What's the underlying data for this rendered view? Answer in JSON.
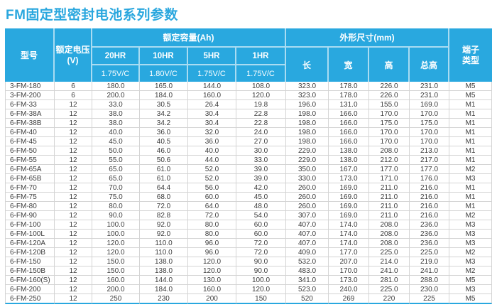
{
  "title": "FM固定型密封电池系列参数",
  "colors": {
    "accent": "#29a8df",
    "header_bg": "#29a8df",
    "header_text": "#ffffff",
    "title_text": "#2aa7de",
    "body_text": "#3d3d3d",
    "grid_line": "#d4d4d4"
  },
  "table": {
    "header": {
      "model": "型号",
      "voltage": "额定电压\n(V)",
      "capacity_group": "额定容量(Ah)",
      "capacity_cols": [
        {
          "hr": "20HR",
          "vc": "1.75V/C"
        },
        {
          "hr": "10HR",
          "vc": "1.80V/C"
        },
        {
          "hr": "5HR",
          "vc": "1.75V/C"
        },
        {
          "hr": "1HR",
          "vc": "1.75V/C"
        }
      ],
      "dimensions_group": "外形尺寸(mm)",
      "dimension_cols": [
        "长",
        "宽",
        "高",
        "总高"
      ],
      "terminal": "端子\n类型"
    },
    "rows": [
      [
        "3-FM-180",
        "6",
        "180.0",
        "165.0",
        "144.0",
        "108.0",
        "323.0",
        "178.0",
        "226.0",
        "231.0",
        "M5"
      ],
      [
        "3-FM-200",
        "6",
        "200.0",
        "184.0",
        "160.0",
        "120.0",
        "323.0",
        "178.0",
        "226.0",
        "231.0",
        "M5"
      ],
      [
        "6-FM-33",
        "12",
        "33.0",
        "30.5",
        "26.4",
        "19.8",
        "196.0",
        "131.0",
        "155.0",
        "169.0",
        "M1"
      ],
      [
        "6-FM-38A",
        "12",
        "38.0",
        "34.2",
        "30.4",
        "22.8",
        "198.0",
        "166.0",
        "170.0",
        "170.0",
        "M1"
      ],
      [
        "6-FM-38B",
        "12",
        "38.0",
        "34.2",
        "30.4",
        "22.8",
        "198.0",
        "166.0",
        "175.0",
        "175.0",
        "M1"
      ],
      [
        "6-FM-40",
        "12",
        "40.0",
        "36.0",
        "32.0",
        "24.0",
        "198.0",
        "166.0",
        "170.0",
        "170.0",
        "M1"
      ],
      [
        "6-FM-45",
        "12",
        "45.0",
        "40.5",
        "36.0",
        "27.0",
        "198.0",
        "166.0",
        "170.0",
        "170.0",
        "M1"
      ],
      [
        "6-FM-50",
        "12",
        "50.0",
        "46.0",
        "40.0",
        "30.0",
        "229.0",
        "138.0",
        "208.0",
        "213.0",
        "M1"
      ],
      [
        "6-FM-55",
        "12",
        "55.0",
        "50.6",
        "44.0",
        "33.0",
        "229.0",
        "138.0",
        "212.0",
        "217.0",
        "M1"
      ],
      [
        "6-FM-65A",
        "12",
        "65.0",
        "61.0",
        "52.0",
        "39.0",
        "350.0",
        "167.0",
        "177.0",
        "177.0",
        "M2"
      ],
      [
        "6-FM-65B",
        "12",
        "65.0",
        "61.0",
        "52.0",
        "39.0",
        "330.0",
        "173.0",
        "171.0",
        "176.0",
        "M3"
      ],
      [
        "6-FM-70",
        "12",
        "70.0",
        "64.4",
        "56.0",
        "42.0",
        "260.0",
        "169.0",
        "211.0",
        "216.0",
        "M1"
      ],
      [
        "6-FM-75",
        "12",
        "75.0",
        "68.0",
        "60.0",
        "45.0",
        "260.0",
        "169.0",
        "211.0",
        "216.0",
        "M1"
      ],
      [
        "6-FM-80",
        "12",
        "80.0",
        "72.0",
        "64.0",
        "48.0",
        "260.0",
        "169.0",
        "211.0",
        "216.0",
        "M1"
      ],
      [
        "6-FM-90",
        "12",
        "90.0",
        "82.8",
        "72.0",
        "54.0",
        "307.0",
        "169.0",
        "211.0",
        "216.0",
        "M2"
      ],
      [
        "6-FM-100",
        "12",
        "100.0",
        "92.0",
        "80.0",
        "60.0",
        "407.0",
        "174.0",
        "208.0",
        "236.0",
        "M3"
      ],
      [
        "6-FM-100L",
        "12",
        "100.0",
        "92.0",
        "80.0",
        "60.0",
        "407.0",
        "174.0",
        "208.0",
        "236.0",
        "M3"
      ],
      [
        "6-FM-120A",
        "12",
        "120.0",
        "110.0",
        "96.0",
        "72.0",
        "407.0",
        "174.0",
        "208.0",
        "236.0",
        "M3"
      ],
      [
        "6-FM-120B",
        "12",
        "120.0",
        "110.0",
        "96.0",
        "72.0",
        "409.0",
        "177.0",
        "225.0",
        "225.0",
        "M2"
      ],
      [
        "6-FM-150",
        "12",
        "150.0",
        "138.0",
        "120.0",
        "90.0",
        "532.0",
        "207.0",
        "214.0",
        "219.0",
        "M3"
      ],
      [
        "6-FM-150B",
        "12",
        "150.0",
        "138.0",
        "120.0",
        "90.0",
        "483.0",
        "170.0",
        "241.0",
        "241.0",
        "M2"
      ],
      [
        "6-FM-160(S)",
        "12",
        "160.0",
        "144.0",
        "130.0",
        "100.0",
        "341.0",
        "173.0",
        "281.0",
        "288.0",
        "M5"
      ],
      [
        "6-FM-200",
        "12",
        "200.0",
        "184.0",
        "160.0",
        "120.0",
        "523.0",
        "240.0",
        "225.0",
        "230.0",
        "M3"
      ],
      [
        "6-FM-250",
        "12",
        "250",
        "230",
        "200",
        "150",
        "520",
        "269",
        "220",
        "225",
        "M5"
      ]
    ]
  }
}
